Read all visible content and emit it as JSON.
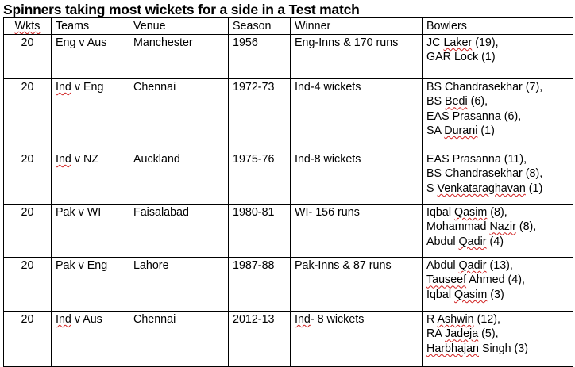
{
  "title": "Spinners taking most wickets for a side in a Test match",
  "headers": {
    "wkts": "Wkts",
    "teams": "Teams",
    "venue": "Venue",
    "season": "Season",
    "winner": "Winner",
    "bowlers": "Bowlers"
  },
  "rows": [
    {
      "wkts": "20",
      "teams_a": "",
      "teams_b": "Eng v Aus",
      "venue": "Manchester",
      "season": "1956",
      "winner_a": "",
      "winner_b": "Eng-Inns & 170 runs",
      "bowlers": [
        {
          "pre": "JC ",
          "sp": "Laker",
          "post": " (19),"
        },
        {
          "pre": "GAR Lock (1)",
          "sp": "",
          "post": ""
        }
      ]
    },
    {
      "wkts": "20",
      "teams_a": "Ind",
      "teams_b": " v Eng",
      "venue": "Chennai",
      "season": "1972-73",
      "winner_a": "",
      "winner_b": "Ind-4 wickets",
      "bowlers": [
        {
          "pre": "BS Chandrasekhar (7),",
          "sp": "",
          "post": ""
        },
        {
          "pre": "BS ",
          "sp": "Bedi",
          "post": " (6),"
        },
        {
          "pre": "EAS Prasanna (6),",
          "sp": "",
          "post": ""
        },
        {
          "pre": "SA ",
          "sp": "Durani",
          "post": " (1)"
        }
      ]
    },
    {
      "wkts": "20",
      "teams_a": "Ind",
      "teams_b": " v NZ",
      "venue": "Auckland",
      "season": "1975-76",
      "winner_a": "",
      "winner_b": "Ind-8 wickets",
      "bowlers": [
        {
          "pre": "EAS Prasanna (11),",
          "sp": "",
          "post": ""
        },
        {
          "pre": "BS Chandrasekhar (8),",
          "sp": "",
          "post": ""
        },
        {
          "pre": "S ",
          "sp": "Venkataraghavan",
          "post": " (1)"
        }
      ]
    },
    {
      "wkts": "20",
      "teams_a": "",
      "teams_b": "Pak v WI",
      "venue": "Faisalabad",
      "season": "1980-81",
      "winner_a": "",
      "winner_b": "WI- 156 runs",
      "bowlers": [
        {
          "pre": "Iqbal ",
          "sp": "Qasim",
          "post": " (8),"
        },
        {
          "pre": "Mohammad ",
          "sp": "Nazir",
          "post": " (8),"
        },
        {
          "pre": "Abdul ",
          "sp": "Qadir",
          "post": " (4)"
        }
      ]
    },
    {
      "wkts": "20",
      "teams_a": "",
      "teams_b": "Pak v Eng",
      "venue": "Lahore",
      "season": "1987-88",
      "winner_a": "",
      "winner_b": "Pak-Inns & 87 runs",
      "bowlers": [
        {
          "pre": "Abdul ",
          "sp": "Qadir",
          "post": " (13),"
        },
        {
          "pre": "",
          "sp": "Tauseef",
          "post": " Ahmed (4),"
        },
        {
          "pre": "Iqbal ",
          "sp": "Qasim",
          "post": " (3)"
        }
      ]
    },
    {
      "wkts": "20",
      "teams_a": "Ind",
      "teams_b": " v Aus",
      "venue": "Chennai",
      "season": "2012-13",
      "winner_a": "Ind",
      "winner_b": "- 8 wickets",
      "bowlers": [
        {
          "pre": "R ",
          "sp": "Ashwin",
          "post": " (12),"
        },
        {
          "pre": "RA ",
          "sp": "Jadeja",
          "post": " (5),"
        },
        {
          "pre": "",
          "sp": "Harbhajan",
          "post": " Singh (3)"
        }
      ]
    }
  ]
}
